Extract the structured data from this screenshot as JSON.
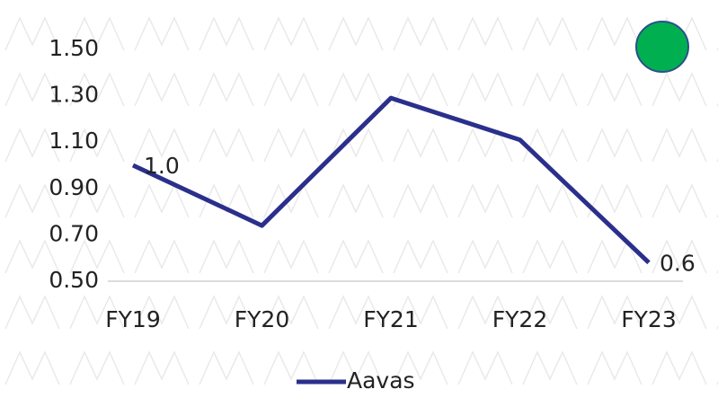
{
  "chart_data": {
    "type": "line",
    "categories": [
      "FY19",
      "FY20",
      "FY21",
      "FY22",
      "FY23"
    ],
    "series": [
      {
        "name": "Aavas",
        "color": "#2b2f8c",
        "values": [
          1.0,
          0.74,
          1.29,
          1.11,
          0.58
        ],
        "value_labels": [
          "1.0",
          null,
          null,
          null,
          "0.6"
        ]
      }
    ],
    "ylim": [
      0.5,
      1.5
    ],
    "yticks": [
      {
        "value": 0.5,
        "label": "0.50"
      },
      {
        "value": 0.7,
        "label": "0.70"
      },
      {
        "value": 0.9,
        "label": "0.90"
      },
      {
        "value": 1.1,
        "label": "1.10"
      },
      {
        "value": 1.3,
        "label": "1.30"
      },
      {
        "value": 1.5,
        "label": "1.50"
      }
    ],
    "legend": "bottom"
  }
}
